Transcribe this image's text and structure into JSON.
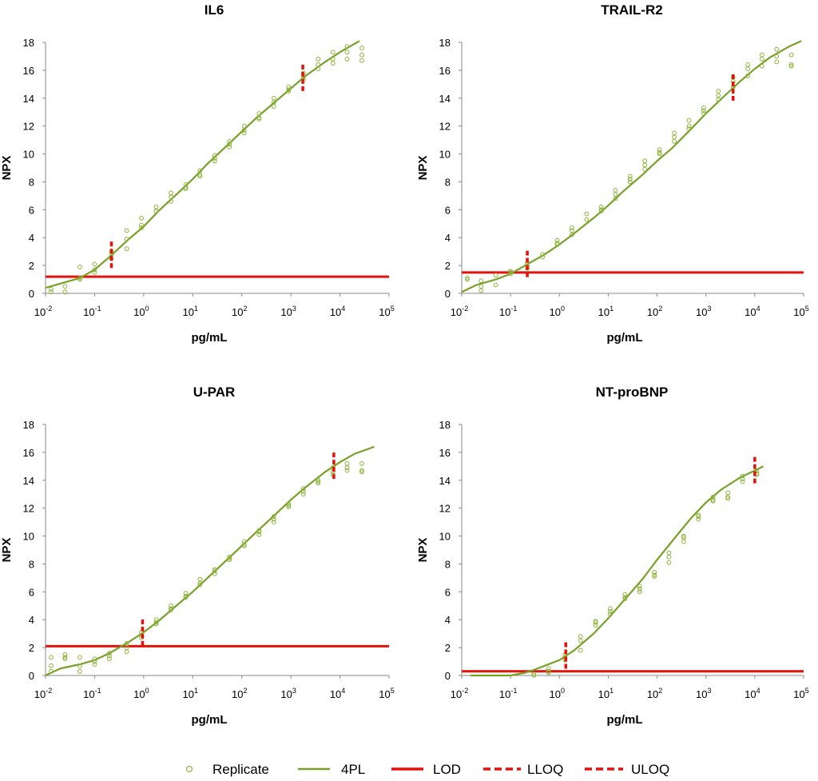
{
  "legend": {
    "replicate": "Replicate",
    "fit": "4PL",
    "lod": "LOD",
    "lloq": "LLOQ",
    "uloq": "ULOQ"
  },
  "colors": {
    "replicate": "#8db33a",
    "fit": "#77a127",
    "limit": "#e3120b"
  },
  "chart_data": [
    {
      "type": "scatter",
      "title": "IL6",
      "xlabel": "pg/mL",
      "ylabel": "NPX",
      "xscale": "log",
      "xlim": [
        0.01,
        100000
      ],
      "ylim": [
        0,
        18
      ],
      "yticks": [
        0,
        2,
        4,
        6,
        8,
        10,
        12,
        14,
        16,
        18
      ],
      "xtick_exponents": [
        -2,
        -1,
        0,
        1,
        2,
        3,
        4,
        5
      ],
      "lod": 1.2,
      "lloq_x": 0.22,
      "uloq_x": 1750,
      "series": [
        {
          "name": "Replicate",
          "kind": "points",
          "x": [
            0.013,
            0.013,
            0.025,
            0.025,
            0.05,
            0.05,
            0.05,
            0.1,
            0.1,
            0.1,
            0.22,
            0.22,
            0.22,
            0.45,
            0.45,
            0.45,
            0.9,
            0.9,
            0.9,
            1.8,
            1.8,
            1.8,
            3.6,
            3.6,
            3.6,
            7.2,
            7.2,
            7.2,
            14,
            14,
            14,
            28,
            28,
            28,
            56,
            56,
            56,
            112,
            112,
            112,
            225,
            225,
            225,
            450,
            450,
            450,
            900,
            900,
            900,
            1800,
            1800,
            1800,
            3600,
            3600,
            3600,
            7200,
            7200,
            7200,
            14000,
            14000,
            14000,
            28000,
            28000,
            28000
          ],
          "y": [
            0.3,
            0.1,
            0.5,
            0.1,
            1.9,
            1.1,
            1.0,
            2.1,
            1.7,
            1.5,
            3.0,
            2.8,
            2.5,
            4.5,
            3.9,
            3.2,
            5.4,
            4.9,
            4.7,
            6.2,
            5.9,
            5.9,
            7.2,
            6.9,
            6.6,
            7.8,
            7.6,
            7.5,
            8.8,
            8.5,
            8.4,
            9.9,
            9.7,
            9.5,
            10.9,
            10.7,
            10.5,
            12.0,
            11.7,
            11.5,
            12.9,
            12.6,
            12.5,
            14.0,
            13.7,
            13.4,
            14.8,
            14.6,
            14.5,
            15.8,
            15.5,
            15.3,
            16.8,
            16.4,
            16.1,
            17.3,
            16.8,
            16.5,
            17.7,
            17.3,
            16.8,
            17.6,
            17.1,
            16.7
          ]
        },
        {
          "name": "4PL",
          "kind": "line",
          "x": [
            0.01,
            0.02,
            0.05,
            0.1,
            0.2,
            0.5,
            1,
            2,
            5,
            10,
            20,
            50,
            100,
            200,
            500,
            1000,
            2000,
            5000,
            10000,
            25000
          ],
          "y": [
            0.4,
            0.7,
            1.1,
            1.7,
            2.6,
            3.9,
            4.8,
            5.9,
            7.2,
            8.2,
            9.3,
            10.6,
            11.6,
            12.6,
            13.8,
            14.7,
            15.6,
            16.6,
            17.3,
            18.1
          ]
        }
      ]
    },
    {
      "type": "scatter",
      "title": "TRAIL-R2",
      "xlabel": "pg/mL",
      "ylabel": "NPX",
      "xscale": "log",
      "xlim": [
        0.01,
        100000
      ],
      "ylim": [
        0,
        18
      ],
      "yticks": [
        0,
        2,
        4,
        6,
        8,
        10,
        12,
        14,
        16,
        18
      ],
      "xtick_exponents": [
        -2,
        -1,
        0,
        1,
        2,
        3,
        4,
        5
      ],
      "lod": 1.5,
      "lloq_x": 0.22,
      "uloq_x": 3600,
      "series": [
        {
          "name": "Replicate",
          "kind": "points",
          "x": [
            0.013,
            0.013,
            0.025,
            0.025,
            0.025,
            0.05,
            0.05,
            0.1,
            0.1,
            0.1,
            0.22,
            0.22,
            0.22,
            0.45,
            0.45,
            0.9,
            0.9,
            0.9,
            1.8,
            1.8,
            1.8,
            3.6,
            3.6,
            7.2,
            7.2,
            7.2,
            14,
            14,
            14,
            28,
            28,
            28,
            56,
            56,
            56,
            112,
            112,
            112,
            225,
            225,
            225,
            450,
            450,
            450,
            900,
            900,
            900,
            1800,
            1800,
            1800,
            3600,
            3600,
            3600,
            7200,
            7200,
            7200,
            14000,
            14000,
            14000,
            28000,
            28000,
            28000,
            56000,
            56000,
            56000
          ],
          "y": [
            1.1,
            1.0,
            0.9,
            0.5,
            0.2,
            1.3,
            0.6,
            1.6,
            1.5,
            1.4,
            2.2,
            2.0,
            1.8,
            2.8,
            2.6,
            3.8,
            3.6,
            3.5,
            4.7,
            4.5,
            4.2,
            5.7,
            5.3,
            6.2,
            6.0,
            5.9,
            7.4,
            7.1,
            6.8,
            8.4,
            8.2,
            8.0,
            9.5,
            9.2,
            8.9,
            10.3,
            10.1,
            10.0,
            11.5,
            11.2,
            10.9,
            12.4,
            12.0,
            11.8,
            13.3,
            13.1,
            12.9,
            14.5,
            14.2,
            13.9,
            15.5,
            15.2,
            14.8,
            16.4,
            16.1,
            15.6,
            17.1,
            16.8,
            16.3,
            17.5,
            17.0,
            16.6,
            17.1,
            16.4,
            16.3
          ]
        },
        {
          "name": "4PL",
          "kind": "line",
          "x": [
            0.01,
            0.02,
            0.05,
            0.1,
            0.2,
            0.5,
            1,
            2,
            5,
            10,
            20,
            50,
            100,
            200,
            500,
            1000,
            2000,
            5000,
            10000,
            20000,
            50000,
            90000
          ],
          "y": [
            0.1,
            0.6,
            1.0,
            1.4,
            2.0,
            2.8,
            3.5,
            4.3,
            5.4,
            6.3,
            7.3,
            8.5,
            9.5,
            10.4,
            11.8,
            12.9,
            13.9,
            15.2,
            16.1,
            16.9,
            17.7,
            18.1
          ]
        }
      ]
    },
    {
      "type": "scatter",
      "title": "U-PAR",
      "xlabel": "pg/mL",
      "ylabel": "NPX",
      "xscale": "log",
      "xlim": [
        0.01,
        100000
      ],
      "ylim": [
        0,
        18
      ],
      "yticks": [
        0,
        2,
        4,
        6,
        8,
        10,
        12,
        14,
        16,
        18
      ],
      "xtick_exponents": [
        -2,
        -1,
        0,
        1,
        2,
        3,
        4,
        5
      ],
      "lod": 2.1,
      "lloq_x": 0.95,
      "uloq_x": 7500,
      "series": [
        {
          "name": "Replicate",
          "kind": "points",
          "x": [
            0.013,
            0.013,
            0.013,
            0.025,
            0.025,
            0.025,
            0.05,
            0.05,
            0.05,
            0.1,
            0.1,
            0.1,
            0.2,
            0.2,
            0.2,
            0.45,
            0.45,
            0.45,
            0.9,
            0.9,
            0.9,
            1.8,
            1.8,
            1.8,
            3.6,
            3.6,
            3.6,
            7.2,
            7.2,
            7.2,
            14,
            14,
            14,
            28,
            28,
            28,
            56,
            56,
            56,
            112,
            112,
            112,
            225,
            225,
            225,
            450,
            450,
            450,
            900,
            900,
            900,
            1800,
            1800,
            1800,
            3600,
            3600,
            3600,
            7200,
            7200,
            7200,
            14000,
            14000,
            14000,
            28000,
            28000,
            28000
          ],
          "y": [
            1.3,
            0.7,
            0.3,
            1.5,
            1.3,
            1.2,
            1.3,
            0.7,
            0.3,
            1.2,
            1.0,
            0.8,
            1.6,
            1.4,
            1.2,
            2.3,
            2.0,
            1.7,
            3.1,
            2.9,
            2.7,
            4.0,
            3.8,
            3.7,
            5.0,
            4.8,
            4.7,
            5.9,
            5.7,
            5.6,
            6.9,
            6.6,
            6.5,
            7.6,
            7.5,
            7.3,
            8.5,
            8.4,
            8.3,
            9.6,
            9.4,
            9.3,
            10.4,
            10.3,
            10.1,
            11.4,
            11.2,
            11.0,
            12.3,
            12.2,
            12.1,
            13.4,
            13.2,
            13.0,
            14.0,
            13.9,
            13.8,
            14.9,
            14.6,
            14.4,
            15.2,
            14.9,
            14.7,
            15.2,
            14.7,
            14.6
          ]
        },
        {
          "name": "4PL",
          "kind": "line",
          "x": [
            0.01,
            0.02,
            0.05,
            0.1,
            0.2,
            0.5,
            1,
            2,
            5,
            10,
            20,
            50,
            100,
            200,
            500,
            1000,
            2000,
            5000,
            10000,
            20000,
            50000
          ],
          "y": [
            0.0,
            0.5,
            0.8,
            1.1,
            1.6,
            2.4,
            3.1,
            3.9,
            5.1,
            6.0,
            7.0,
            8.3,
            9.3,
            10.3,
            11.6,
            12.6,
            13.5,
            14.6,
            15.3,
            15.9,
            16.4
          ]
        }
      ]
    },
    {
      "type": "scatter",
      "title": "NT-proBNP",
      "xlabel": "pg/mL",
      "ylabel": "NPX",
      "xscale": "log",
      "xlim": [
        0.01,
        100000
      ],
      "ylim": [
        0,
        18
      ],
      "yticks": [
        0,
        2,
        4,
        6,
        8,
        10,
        12,
        14,
        16,
        18
      ],
      "xtick_exponents": [
        -2,
        -1,
        0,
        1,
        2,
        3,
        4,
        5
      ],
      "lod": 0.3,
      "lloq_x": 1.35,
      "uloq_x": 10000,
      "series": [
        {
          "name": "Replicate",
          "kind": "points",
          "x": [
            0.3,
            0.3,
            0.6,
            0.6,
            0.6,
            1.3,
            1.3,
            1.3,
            2.7,
            2.7,
            2.7,
            5.5,
            5.5,
            5.5,
            11,
            11,
            11,
            22,
            22,
            22,
            44,
            44,
            44,
            88,
            88,
            88,
            175,
            175,
            175,
            350,
            350,
            350,
            700,
            700,
            700,
            1400,
            1400,
            1400,
            2800,
            2800,
            2800,
            5600,
            5600,
            5600,
            11000,
            11000,
            11000
          ],
          "y": [
            0.1,
            0.0,
            0.5,
            0.3,
            0.2,
            1.5,
            1.3,
            1.1,
            2.8,
            2.5,
            1.8,
            3.9,
            3.8,
            3.6,
            4.8,
            4.6,
            4.4,
            5.8,
            5.6,
            5.5,
            6.4,
            6.2,
            6.0,
            7.4,
            7.2,
            7.1,
            8.8,
            8.5,
            8.1,
            10.0,
            9.9,
            9.6,
            11.5,
            11.4,
            11.2,
            12.8,
            12.6,
            12.5,
            13.1,
            12.8,
            12.7,
            14.3,
            14.1,
            13.9,
            14.7,
            14.5,
            14.4
          ]
        },
        {
          "name": "4PL",
          "kind": "line",
          "x": [
            0.015,
            0.05,
            0.1,
            0.2,
            0.3,
            0.5,
            1,
            2,
            5,
            10,
            20,
            50,
            100,
            200,
            500,
            1000,
            2000,
            5000,
            10000,
            15000
          ],
          "y": [
            0.0,
            0.0,
            0.0,
            0.2,
            0.4,
            0.7,
            1.1,
            1.8,
            3.0,
            4.1,
            5.3,
            6.9,
            8.3,
            9.6,
            11.3,
            12.4,
            13.3,
            14.2,
            14.7,
            15.0
          ]
        }
      ]
    }
  ]
}
